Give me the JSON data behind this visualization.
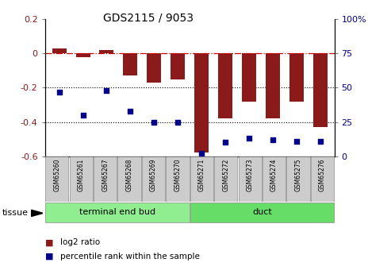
{
  "title": "GDS2115 / 9053",
  "samples": [
    "GSM65260",
    "GSM65261",
    "GSM65267",
    "GSM65268",
    "GSM65269",
    "GSM65270",
    "GSM65271",
    "GSM65272",
    "GSM65273",
    "GSM65274",
    "GSM65275",
    "GSM65276"
  ],
  "log2_ratio": [
    0.03,
    -0.02,
    0.02,
    -0.13,
    -0.17,
    -0.15,
    -0.58,
    -0.38,
    -0.28,
    -0.38,
    -0.28,
    -0.43
  ],
  "percentile": [
    47,
    30,
    48,
    33,
    25,
    25,
    2,
    10,
    13,
    12,
    11,
    11
  ],
  "groups": [
    {
      "label": "terminal end bud",
      "start": 0,
      "end": 6,
      "color": "#90ee90"
    },
    {
      "label": "duct",
      "start": 6,
      "end": 12,
      "color": "#66dd66"
    }
  ],
  "bar_color": "#8b1a1a",
  "dot_color": "#00008b",
  "ylim_left": [
    -0.6,
    0.2
  ],
  "ylim_right": [
    0,
    100
  ],
  "hline_y": 0,
  "hline_color": "#cc0000",
  "dotted_lines": [
    -0.2,
    -0.4
  ],
  "right_ticks": [
    0,
    25,
    50,
    75,
    100
  ],
  "right_tick_labels": [
    "0",
    "25",
    "50",
    "75",
    "100%"
  ],
  "left_ticks": [
    -0.6,
    -0.4,
    -0.2,
    0.0,
    0.2
  ],
  "left_tick_labels": [
    "-0.6",
    "-0.4",
    "-0.2",
    "0",
    "0.2"
  ],
  "tissue_label": "tissue",
  "legend_items": [
    {
      "label": "log2 ratio",
      "color": "#8b1a1a"
    },
    {
      "label": "percentile rank within the sample",
      "color": "#00008b"
    }
  ],
  "group_box_color": "#cccccc",
  "background_color": "#ffffff",
  "bar_width": 0.6,
  "xlim": [
    -0.6,
    11.6
  ]
}
